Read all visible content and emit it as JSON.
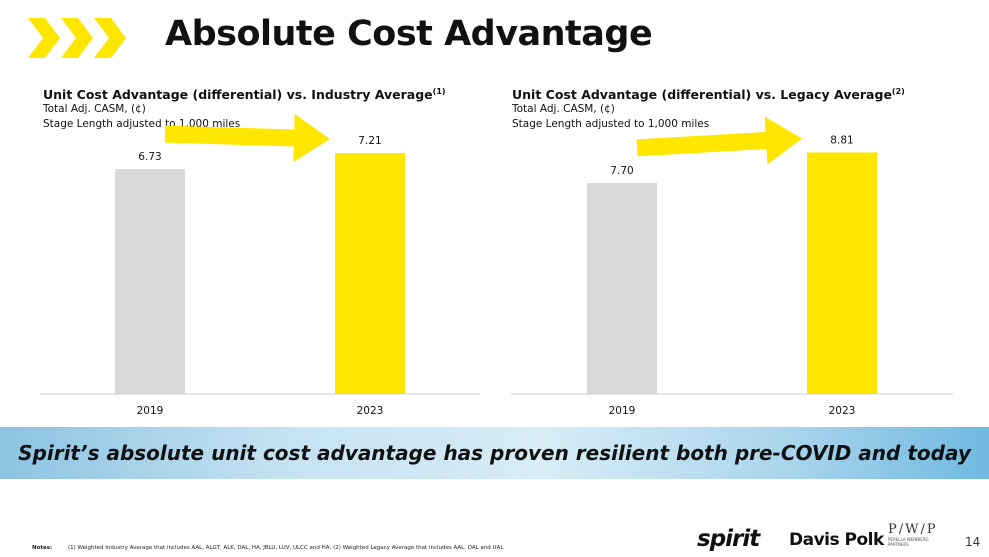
{
  "title": "Absolute Cost Advantage",
  "colors": {
    "accent": "#FFE600",
    "grey_bar": "#D9D9D9",
    "chevron": "#FFE600"
  },
  "chart_data": [
    {
      "type": "bar",
      "title": "Unit Cost Advantage (differential) vs. Industry Average",
      "title_note": "(1)",
      "subtitle": [
        "Total Adj. CASM, (¢)",
        "Stage Length adjusted to 1,000 miles"
      ],
      "categories": [
        "2019",
        "2023"
      ],
      "values": [
        6.73,
        7.21
      ],
      "value_labels": [
        "6.73",
        "7.21"
      ],
      "ylim": [
        0,
        7.9
      ],
      "trend_arrow": "up"
    },
    {
      "type": "bar",
      "title": "Unit Cost Advantage (differential) vs. Legacy Average",
      "title_note": "(2)",
      "subtitle": [
        "Total Adj. CASM, (¢)",
        "Stage Length adjusted to 1,000 miles"
      ],
      "categories": [
        "2019",
        "2023"
      ],
      "values": [
        7.7,
        8.81
      ],
      "value_labels": [
        "7.70",
        "8.81"
      ],
      "ylim": [
        0,
        9.63
      ],
      "trend_arrow": "up"
    }
  ],
  "banner": "Spirit’s absolute unit cost advantage has proven resilient both pre-COVID and today",
  "notes_label": "Notes:",
  "notes_text": "(1) Weighted Industry Average that includes AAL, ALGT, ALK, DAL, HA, JBLU, LUV, ULCC and HA; (2) Weighted Legacy Average that includes AAL, DAL and UAL",
  "logos": {
    "spirit": "spirit",
    "davis_polk": "Davis Polk",
    "pwp": "P/W/P",
    "pwp_sub1": "PERELLA WEINBERG",
    "pwp_sub2": "PARTNERS"
  },
  "page_number": "14"
}
